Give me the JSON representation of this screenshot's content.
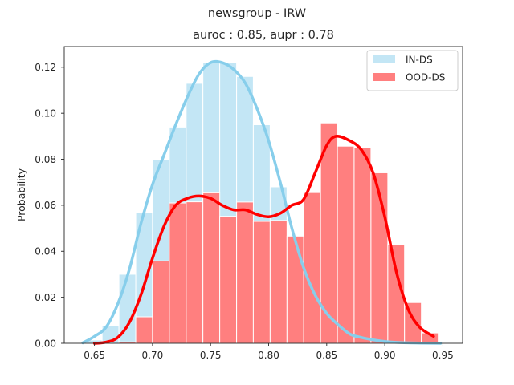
{
  "chart_data": {
    "type": "bar",
    "suptitle": "newsgroup - IRW",
    "title": "auroc : 0.85, aupr : 0.78",
    "xlabel": "",
    "ylabel": "Probability",
    "xlim": [
      0.624,
      0.967
    ],
    "ylim": [
      0.0,
      0.129
    ],
    "xticks": [
      0.65,
      0.7,
      0.75,
      0.8,
      0.85,
      0.9,
      0.95
    ],
    "xtick_labels": [
      "0.65",
      "0.70",
      "0.75",
      "0.80",
      "0.85",
      "0.90",
      "0.95"
    ],
    "yticks": [
      0.0,
      0.02,
      0.04,
      0.06,
      0.08,
      0.1,
      0.12
    ],
    "ytick_labels": [
      "0.00",
      "0.02",
      "0.04",
      "0.06",
      "0.08",
      "0.10",
      "0.12"
    ],
    "grid": false,
    "legend_position": "top-right",
    "bin_edges": [
      0.6422,
      0.6566,
      0.6711,
      0.6856,
      0.7,
      0.7145,
      0.729,
      0.7434,
      0.7579,
      0.7724,
      0.7868,
      0.8013,
      0.8158,
      0.8302,
      0.8447,
      0.8592,
      0.8736,
      0.8881,
      0.9026,
      0.917,
      0.9315,
      0.946
    ],
    "series": [
      {
        "name": "IN-DS",
        "color": "#87ceeb",
        "bar_color": "#c3e6f5",
        "values": [
          0.0014,
          0.0076,
          0.03,
          0.057,
          0.08,
          0.094,
          0.113,
          0.122,
          0.122,
          0.116,
          0.095,
          0.068,
          0.044,
          0.027,
          0.015,
          0.007,
          0.003,
          0.0012,
          0.0004,
          0.0003,
          0.0002
        ],
        "kde": [
          [
            0.64,
            0.0002
          ],
          [
            0.65,
            0.003
          ],
          [
            0.66,
            0.007
          ],
          [
            0.67,
            0.017
          ],
          [
            0.68,
            0.032
          ],
          [
            0.69,
            0.052
          ],
          [
            0.7,
            0.069
          ],
          [
            0.71,
            0.082
          ],
          [
            0.72,
            0.095
          ],
          [
            0.73,
            0.107
          ],
          [
            0.74,
            0.117
          ],
          [
            0.75,
            0.122
          ],
          [
            0.76,
            0.122
          ],
          [
            0.77,
            0.119
          ],
          [
            0.78,
            0.113
          ],
          [
            0.79,
            0.102
          ],
          [
            0.8,
            0.088
          ],
          [
            0.81,
            0.07
          ],
          [
            0.82,
            0.05
          ],
          [
            0.83,
            0.033
          ],
          [
            0.84,
            0.021
          ],
          [
            0.85,
            0.013
          ],
          [
            0.86,
            0.008
          ],
          [
            0.87,
            0.004
          ],
          [
            0.88,
            0.0025
          ],
          [
            0.89,
            0.0015
          ],
          [
            0.9,
            0.0008
          ],
          [
            0.91,
            0.0004
          ],
          [
            0.92,
            0.0002
          ],
          [
            0.93,
            0.0001
          ],
          [
            0.948,
            0.0
          ]
        ]
      },
      {
        "name": "OOD-DS",
        "color": "#ff0000",
        "bar_color": "#ff7f7f",
        "values": [
          0.0,
          0.0,
          0.0006,
          0.0115,
          0.0358,
          0.061,
          0.0615,
          0.0654,
          0.0552,
          0.0614,
          0.053,
          0.0534,
          0.0466,
          0.0655,
          0.0958,
          0.0857,
          0.0852,
          0.0741,
          0.043,
          0.0177,
          0.0045
        ],
        "kde": [
          [
            0.65,
            0.0
          ],
          [
            0.66,
            0.0005
          ],
          [
            0.67,
            0.0025
          ],
          [
            0.68,
            0.009
          ],
          [
            0.69,
            0.021
          ],
          [
            0.7,
            0.037
          ],
          [
            0.71,
            0.051
          ],
          [
            0.72,
            0.06
          ],
          [
            0.73,
            0.063
          ],
          [
            0.74,
            0.064
          ],
          [
            0.75,
            0.063
          ],
          [
            0.76,
            0.06
          ],
          [
            0.77,
            0.058
          ],
          [
            0.78,
            0.058
          ],
          [
            0.79,
            0.056
          ],
          [
            0.8,
            0.055
          ],
          [
            0.81,
            0.0565
          ],
          [
            0.82,
            0.06
          ],
          [
            0.83,
            0.0625
          ],
          [
            0.84,
            0.074
          ],
          [
            0.85,
            0.086
          ],
          [
            0.858,
            0.09
          ],
          [
            0.87,
            0.088
          ],
          [
            0.88,
            0.084
          ],
          [
            0.89,
            0.074
          ],
          [
            0.9,
            0.055
          ],
          [
            0.91,
            0.031
          ],
          [
            0.92,
            0.015
          ],
          [
            0.93,
            0.007
          ],
          [
            0.942,
            0.003
          ]
        ]
      }
    ]
  }
}
